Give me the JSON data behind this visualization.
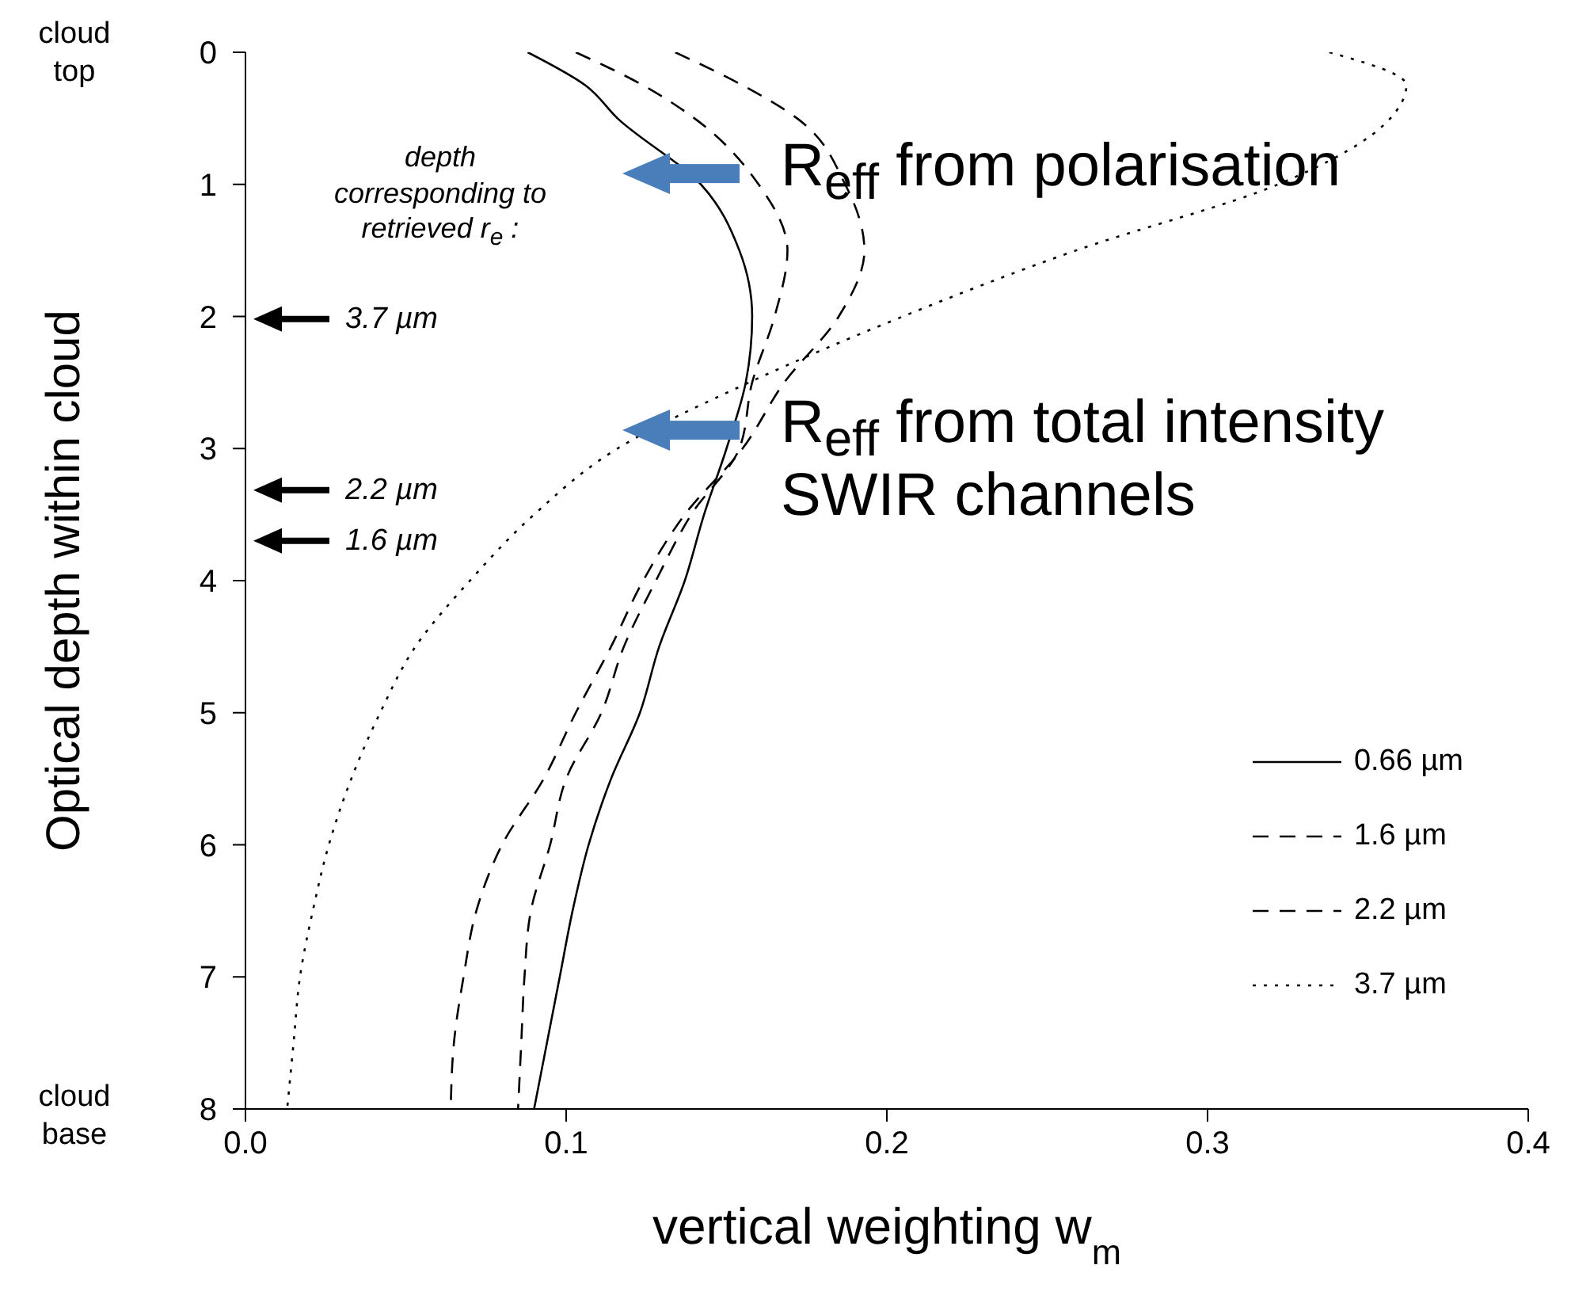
{
  "chart_data": {
    "type": "line",
    "xlabel": "vertical weighting  w$_{m}$",
    "ylabel": "Optical depth within cloud",
    "xlim": [
      0,
      0.4
    ],
    "xticks": [
      {
        "value": 0,
        "label": "0.0"
      },
      0.1,
      0.2,
      0.3,
      0.4
    ],
    "ylim": [
      8,
      0
    ],
    "yticks": [
      0,
      1,
      2,
      3,
      4,
      5,
      6,
      7,
      8
    ],
    "legend": "bottom right",
    "marker": "none",
    "series": [
      {
        "name": "0.66  µm",
        "color": "#000000",
        "line_style": "solid",
        "x": [
          0.088,
          0.106,
          0.116,
          0.142,
          0.154,
          0.158,
          0.156,
          0.15,
          0.143,
          0.137,
          0.129,
          0.123,
          0.114,
          0.107,
          0.102,
          0.098,
          0.094,
          0.09
        ],
        "values": [
          0,
          0.25,
          0.5,
          1,
          1.5,
          2,
          2.5,
          3,
          3.5,
          4,
          4.5,
          5,
          5.5,
          6,
          6.5,
          7,
          7.5,
          8
        ]
      },
      {
        "name": "1.6  µm",
        "color": "#000000",
        "line_style": "dashed",
        "x": [
          0.103,
          0.124,
          0.14,
          0.16,
          0.169,
          0.165,
          0.158,
          0.154,
          0.139,
          0.128,
          0.118,
          0.111,
          0.1,
          0.095,
          0.089,
          0.087,
          0.086,
          0.085
        ],
        "values": [
          0,
          0.25,
          0.5,
          1,
          1.5,
          2,
          2.5,
          3,
          3.5,
          4,
          4.5,
          5,
          5.5,
          6,
          6.5,
          7,
          7.5,
          8
        ]
      },
      {
        "name": "2.2  µm",
        "color": "#000000",
        "line_style": "dashed",
        "x": [
          0.134,
          0.155,
          0.172,
          0.187,
          0.193,
          0.185,
          0.168,
          0.155,
          0.137,
          0.124,
          0.114,
          0.103,
          0.093,
          0.08,
          0.072,
          0.068,
          0.065,
          0.064
        ],
        "values": [
          0,
          0.25,
          0.5,
          1,
          1.5,
          2,
          2.5,
          3,
          3.5,
          4,
          4.5,
          5,
          5.5,
          6,
          6.5,
          7,
          7.5,
          8
        ]
      },
      {
        "name": "3.7  µm",
        "color": "#000000",
        "line_style": "dotted",
        "x": [
          0.338,
          0.362,
          0.357,
          0.322,
          0.259,
          0.205,
          0.157,
          0.116,
          0.09,
          0.07,
          0.053,
          0.042,
          0.033,
          0.026,
          0.021,
          0.017,
          0.015,
          0.013
        ],
        "values": [
          0,
          0.25,
          0.5,
          1,
          1.5,
          2,
          2.5,
          3,
          3.5,
          4,
          4.5,
          5,
          5.5,
          6,
          6.5,
          7,
          7.5,
          8
        ]
      }
    ],
    "annotations": [
      "depth\ncorresponding to\nretrieved r$_{e}$ :",
      "3.7 µm",
      "2.2 µm",
      "1.6 µm",
      "R$_{eff}$ from polarisation",
      "R$_{eff}$ from total intensity\nSWIR channels",
      "cloud\ntop",
      "cloud\nbase"
    ]
  }
}
